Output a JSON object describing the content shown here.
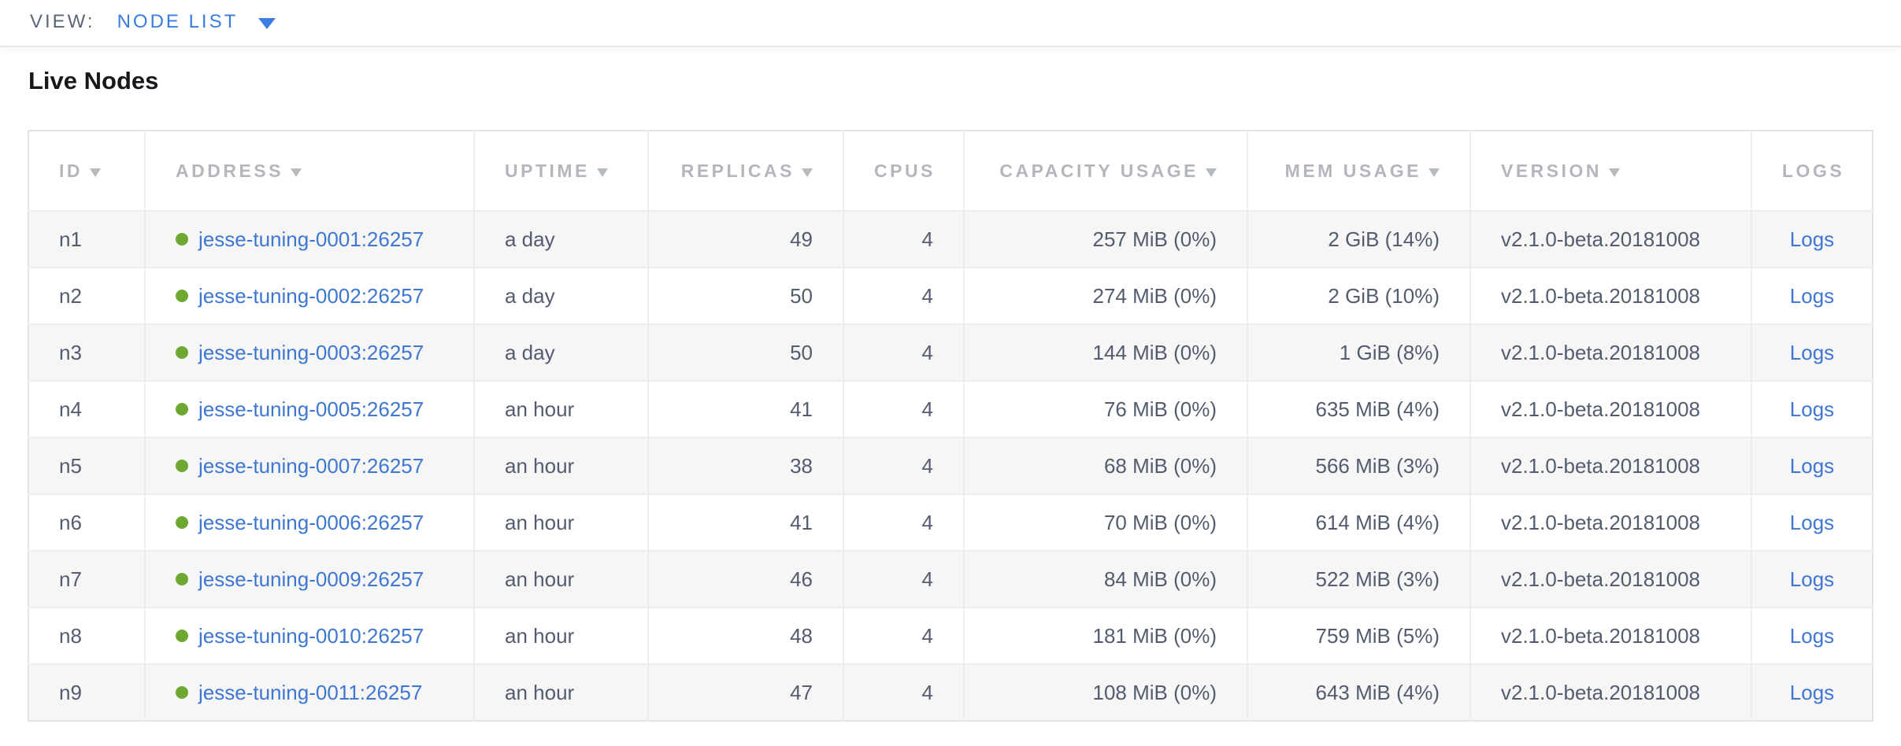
{
  "view_bar": {
    "label": "VIEW:",
    "selected": "NODE LIST"
  },
  "page": {
    "title": "Live Nodes"
  },
  "table": {
    "logs_label": "Logs",
    "columns": [
      {
        "key": "id",
        "label": "ID",
        "sorted": true
      },
      {
        "key": "address",
        "label": "ADDRESS",
        "sorted": true
      },
      {
        "key": "uptime",
        "label": "UPTIME",
        "sorted": true
      },
      {
        "key": "replicas",
        "label": "REPLICAS",
        "sorted": true
      },
      {
        "key": "cpus",
        "label": "CPUS",
        "sorted": false
      },
      {
        "key": "capacity",
        "label": "CAPACITY USAGE",
        "sorted": true
      },
      {
        "key": "mem",
        "label": "MEM USAGE",
        "sorted": true
      },
      {
        "key": "version",
        "label": "VERSION",
        "sorted": true
      },
      {
        "key": "logs",
        "label": "LOGS",
        "sorted": false
      }
    ],
    "rows": [
      {
        "id": "n1",
        "address": "jesse-tuning-0001:26257",
        "uptime": "a day",
        "replicas": "49",
        "cpus": "4",
        "capacity": "257 MiB (0%)",
        "mem": "2 GiB (14%)",
        "version": "v2.1.0-beta.20181008"
      },
      {
        "id": "n2",
        "address": "jesse-tuning-0002:26257",
        "uptime": "a day",
        "replicas": "50",
        "cpus": "4",
        "capacity": "274 MiB (0%)",
        "mem": "2 GiB (10%)",
        "version": "v2.1.0-beta.20181008"
      },
      {
        "id": "n3",
        "address": "jesse-tuning-0003:26257",
        "uptime": "a day",
        "replicas": "50",
        "cpus": "4",
        "capacity": "144 MiB (0%)",
        "mem": "1 GiB (8%)",
        "version": "v2.1.0-beta.20181008"
      },
      {
        "id": "n4",
        "address": "jesse-tuning-0005:26257",
        "uptime": "an hour",
        "replicas": "41",
        "cpus": "4",
        "capacity": "76 MiB (0%)",
        "mem": "635 MiB (4%)",
        "version": "v2.1.0-beta.20181008"
      },
      {
        "id": "n5",
        "address": "jesse-tuning-0007:26257",
        "uptime": "an hour",
        "replicas": "38",
        "cpus": "4",
        "capacity": "68 MiB (0%)",
        "mem": "566 MiB (3%)",
        "version": "v2.1.0-beta.20181008"
      },
      {
        "id": "n6",
        "address": "jesse-tuning-0006:26257",
        "uptime": "an hour",
        "replicas": "41",
        "cpus": "4",
        "capacity": "70 MiB (0%)",
        "mem": "614 MiB (4%)",
        "version": "v2.1.0-beta.20181008"
      },
      {
        "id": "n7",
        "address": "jesse-tuning-0009:26257",
        "uptime": "an hour",
        "replicas": "46",
        "cpus": "4",
        "capacity": "84 MiB (0%)",
        "mem": "522 MiB (3%)",
        "version": "v2.1.0-beta.20181008"
      },
      {
        "id": "n8",
        "address": "jesse-tuning-0010:26257",
        "uptime": "an hour",
        "replicas": "48",
        "cpus": "4",
        "capacity": "181 MiB (0%)",
        "mem": "759 MiB (5%)",
        "version": "v2.1.0-beta.20181008"
      },
      {
        "id": "n9",
        "address": "jesse-tuning-0011:26257",
        "uptime": "an hour",
        "replicas": "47",
        "cpus": "4",
        "capacity": "108 MiB (0%)",
        "mem": "643 MiB (4%)",
        "version": "v2.1.0-beta.20181008"
      }
    ]
  },
  "colors": {
    "accent_blue": "#3b7ce2",
    "link_blue": "#3e76d2",
    "status_green": "#6fa831",
    "header_gray": "#b3b6bb",
    "row_stripe": "#f6f6f7",
    "body_text": "#525c6e"
  }
}
